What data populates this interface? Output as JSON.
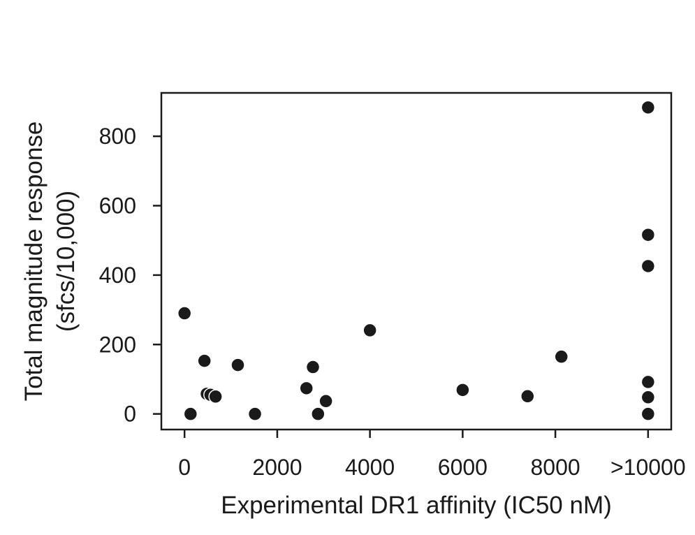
{
  "chart_data": {
    "type": "scatter",
    "title": "",
    "xlabel": "Experimental DR1 affinity (IC50 nM)",
    "ylabel_lines": [
      "Total magnitude response",
      "(sfcs/10,000)"
    ],
    "xlim": [
      -500,
      10500
    ],
    "ylim": [
      -45,
      925
    ],
    "x_ticks": [
      0,
      2000,
      4000,
      6000,
      8000,
      10000
    ],
    "x_tick_labels": [
      "0",
      "2000",
      "4000",
      "6000",
      "8000",
      ">10000"
    ],
    "y_ticks": [
      0,
      200,
      400,
      600,
      800
    ],
    "y_tick_labels": [
      "0",
      "200",
      "400",
      "600",
      "800"
    ],
    "grid": false,
    "marker_color": "#1a1a1a",
    "points": [
      {
        "x": 0,
        "y": 290
      },
      {
        "x": 130,
        "y": 0
      },
      {
        "x": 430,
        "y": 153
      },
      {
        "x": 480,
        "y": 58
      },
      {
        "x": 560,
        "y": 55
      },
      {
        "x": 670,
        "y": 50
      },
      {
        "x": 1150,
        "y": 141
      },
      {
        "x": 1520,
        "y": 0
      },
      {
        "x": 2630,
        "y": 74
      },
      {
        "x": 2770,
        "y": 135
      },
      {
        "x": 2880,
        "y": 0
      },
      {
        "x": 3050,
        "y": 37
      },
      {
        "x": 4000,
        "y": 241
      },
      {
        "x": 6000,
        "y": 69
      },
      {
        "x": 7400,
        "y": 51
      },
      {
        "x": 8130,
        "y": 165
      },
      {
        "x": 10000,
        "y": 883
      },
      {
        "x": 10000,
        "y": 516
      },
      {
        "x": 10000,
        "y": 426
      },
      {
        "x": 10000,
        "y": 92
      },
      {
        "x": 10000,
        "y": 48
      },
      {
        "x": 10000,
        "y": 0
      }
    ]
  }
}
